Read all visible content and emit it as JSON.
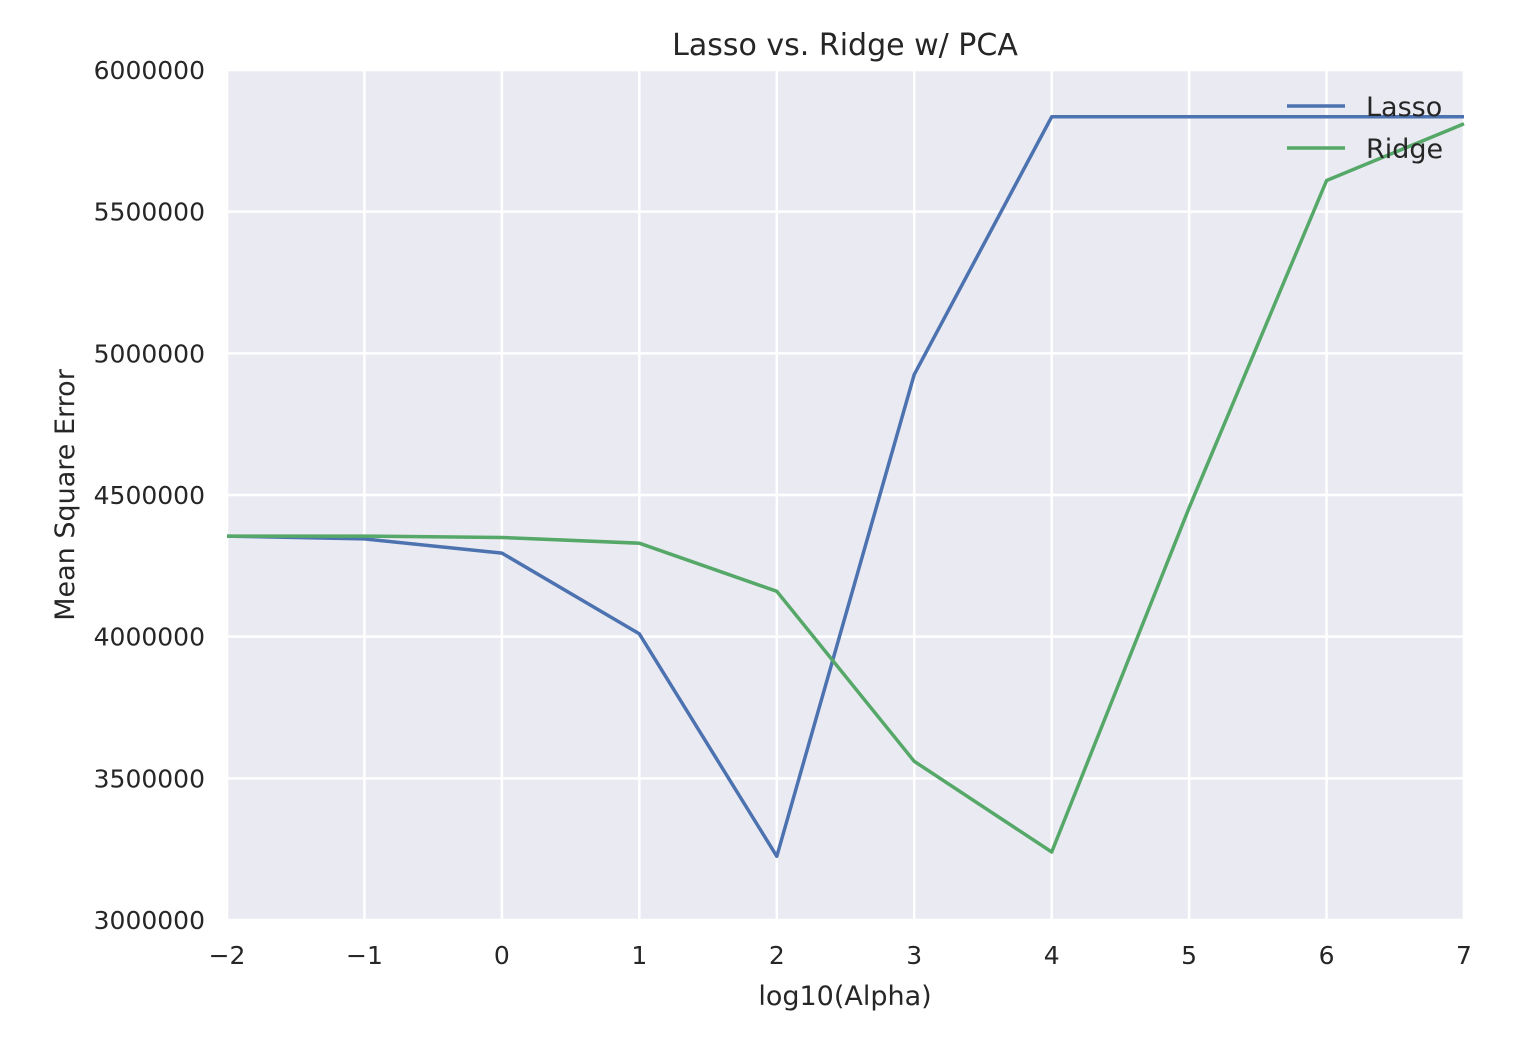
{
  "chart_data": {
    "type": "line",
    "title": "Lasso vs. Ridge w/ PCA",
    "xlabel": "log10(Alpha)",
    "ylabel": "Mean Square Error",
    "xlim": [
      -2,
      7
    ],
    "ylim": [
      3000000,
      6000000
    ],
    "x_ticks": [
      -2,
      -1,
      0,
      1,
      2,
      3,
      4,
      5,
      6,
      7
    ],
    "x_tick_labels": [
      "−2",
      "−1",
      "0",
      "1",
      "2",
      "3",
      "4",
      "5",
      "6",
      "7"
    ],
    "y_ticks": [
      3000000,
      3500000,
      4000000,
      4500000,
      5000000,
      5500000,
      6000000
    ],
    "y_tick_labels": [
      "3000000",
      "3500000",
      "4000000",
      "4500000",
      "5000000",
      "5500000",
      "6000000"
    ],
    "grid": true,
    "legend_position": "top-right",
    "series": [
      {
        "name": "Lasso",
        "color": "#4c72b0",
        "x": [
          -2,
          -1,
          0,
          1,
          2,
          3,
          4,
          5,
          6,
          7
        ],
        "y": [
          4355000,
          4345000,
          4295000,
          4010000,
          3225000,
          4925000,
          5835000,
          5835000,
          5835000,
          5835000
        ]
      },
      {
        "name": "Ridge",
        "color": "#55a868",
        "x": [
          -2,
          -1,
          0,
          1,
          2,
          3,
          4,
          5,
          6,
          7
        ],
        "y": [
          4355000,
          4355000,
          4350000,
          4330000,
          4160000,
          3560000,
          3240000,
          4455000,
          5610000,
          5810000
        ]
      }
    ]
  },
  "style": {
    "plot_background": "#eaeaf2",
    "grid_color": "#ffffff",
    "text_color": "#262626"
  }
}
